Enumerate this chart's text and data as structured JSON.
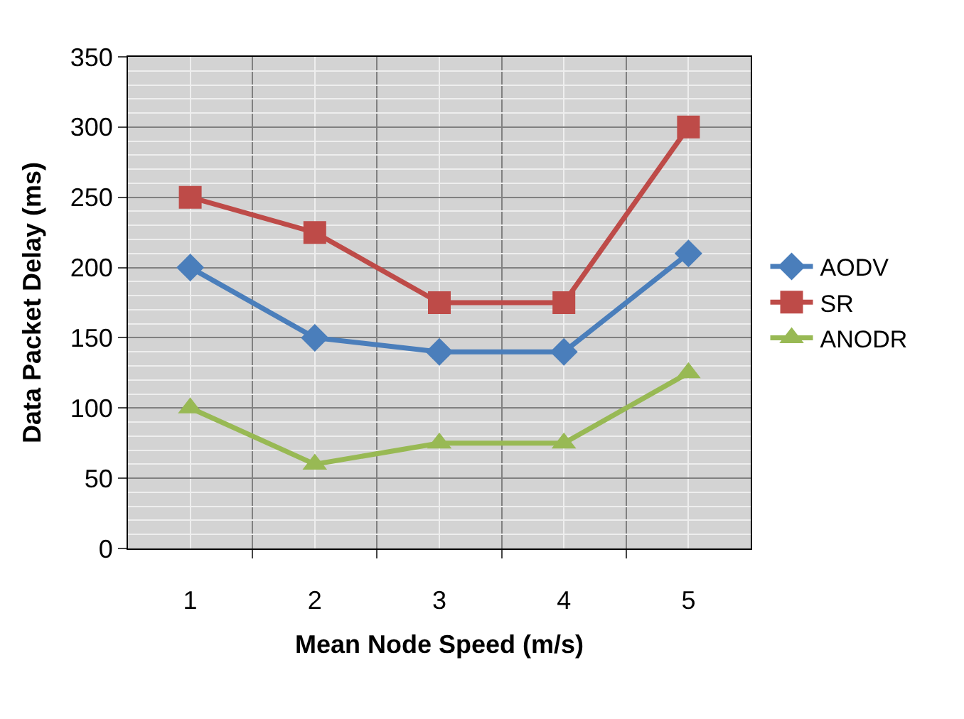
{
  "chart_data": {
    "type": "line",
    "xlabel": "Mean Node Speed (m/s)",
    "ylabel": "Data Packet Delay (ms)",
    "categories": [
      "1",
      "2",
      "3",
      "4",
      "5"
    ],
    "series": [
      {
        "name": "AODV",
        "color": "#4a7ebb",
        "marker": "diamond",
        "values": [
          200,
          150,
          140,
          140,
          210
        ]
      },
      {
        "name": "SR",
        "color": "#be4b48",
        "marker": "square",
        "values": [
          250,
          225,
          175,
          175,
          300
        ]
      },
      {
        "name": "ANODR",
        "color": "#98b954",
        "marker": "triangle",
        "values": [
          100,
          60,
          75,
          75,
          125
        ]
      }
    ],
    "ylim": [
      0,
      350
    ],
    "yticks": [
      0,
      50,
      100,
      150,
      200,
      250,
      300,
      350
    ],
    "grid": true,
    "legend": "right",
    "line_style": "solid"
  }
}
